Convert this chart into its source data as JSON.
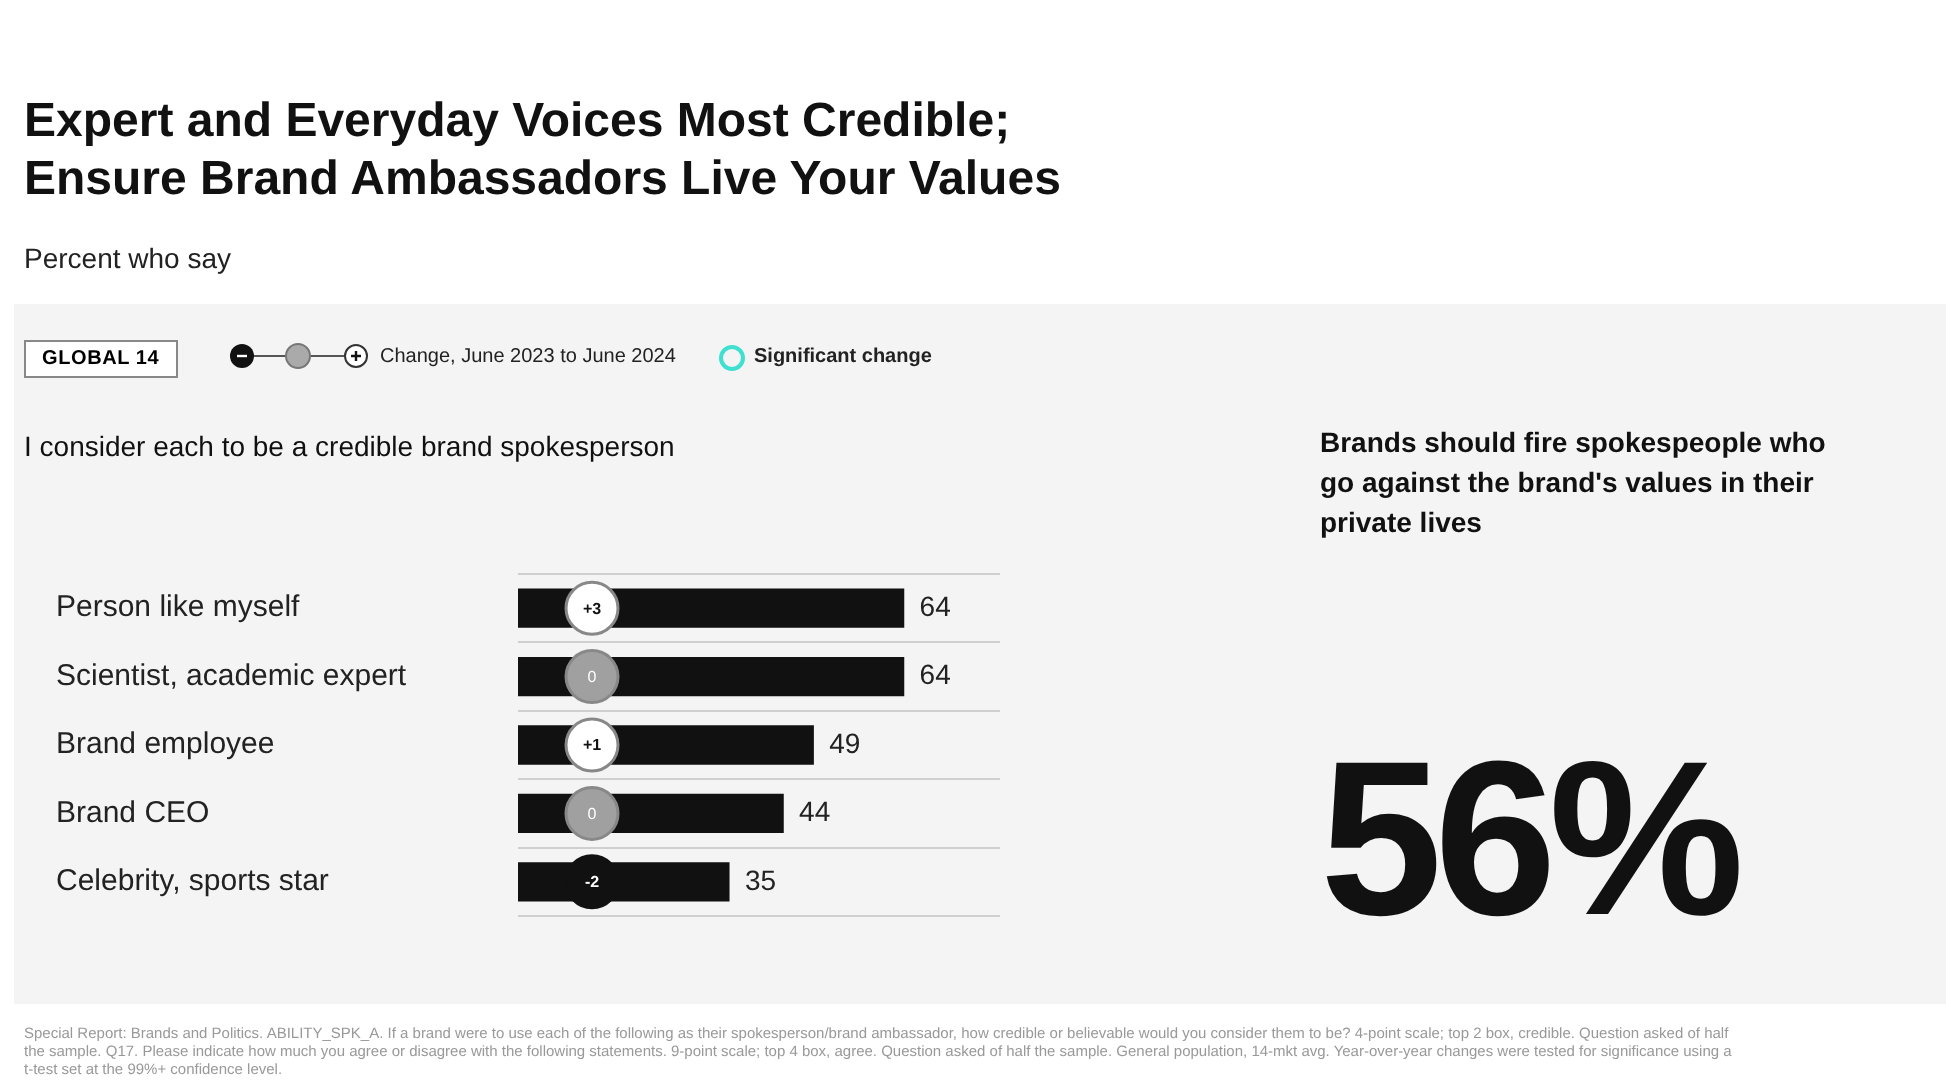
{
  "chart_data": [
    {
      "type": "bar",
      "orientation": "horizontal",
      "title": "Expert and Everyday Voices Most Credible; Ensure Brand Ambassadors Live Your Values",
      "subtitle": "Percent who say",
      "categories": [
        "Person like myself",
        "Scientist, academic expert",
        "Brand employee",
        "Brand CEO",
        "Celebrity, sports star"
      ],
      "values": [
        64,
        64,
        49,
        44,
        35
      ],
      "color": "#111111",
      "data_labels": true,
      "grid": "y",
      "legend": false,
      "annotations": [
        "GLOBAL 14",
        "Change, June 2023 to June 2024",
        "Significant change",
        "I consider each to be a credible brand spokesperson",
        "Special Report: Brands and Politics. ABILITY_SPK_A. If a brand were to use each of the following as their spokesperson/brand ambassador, how credible or believable would you consider them to be? 4-point scale; top 2 box, credible. Question asked of half the sample. Q17. Please indicate how much you agree or disagree with the following statements. 9-point scale; top 4 box, agree. Question asked of half the sample. General population, 14-mkt avg. Year-over-year changes were tested for significance using a t-test set at the 99%+ confidence level.",
        {
          "text": "+3",
          "y": "Person like myself"
        },
        {
          "text": "0",
          "y": "Scientist, academic expert"
        },
        {
          "text": "+1",
          "y": "Brand employee"
        },
        {
          "text": "0",
          "y": "Brand CEO"
        },
        {
          "text": "-2",
          "y": "Celebrity, sports star"
        }
      ]
    },
    {
      "type": "other",
      "title": "Brands should fire spokespeople who go against the brand's values in their private lives",
      "annotations": [
        "56%"
      ]
    }
  ]
}
